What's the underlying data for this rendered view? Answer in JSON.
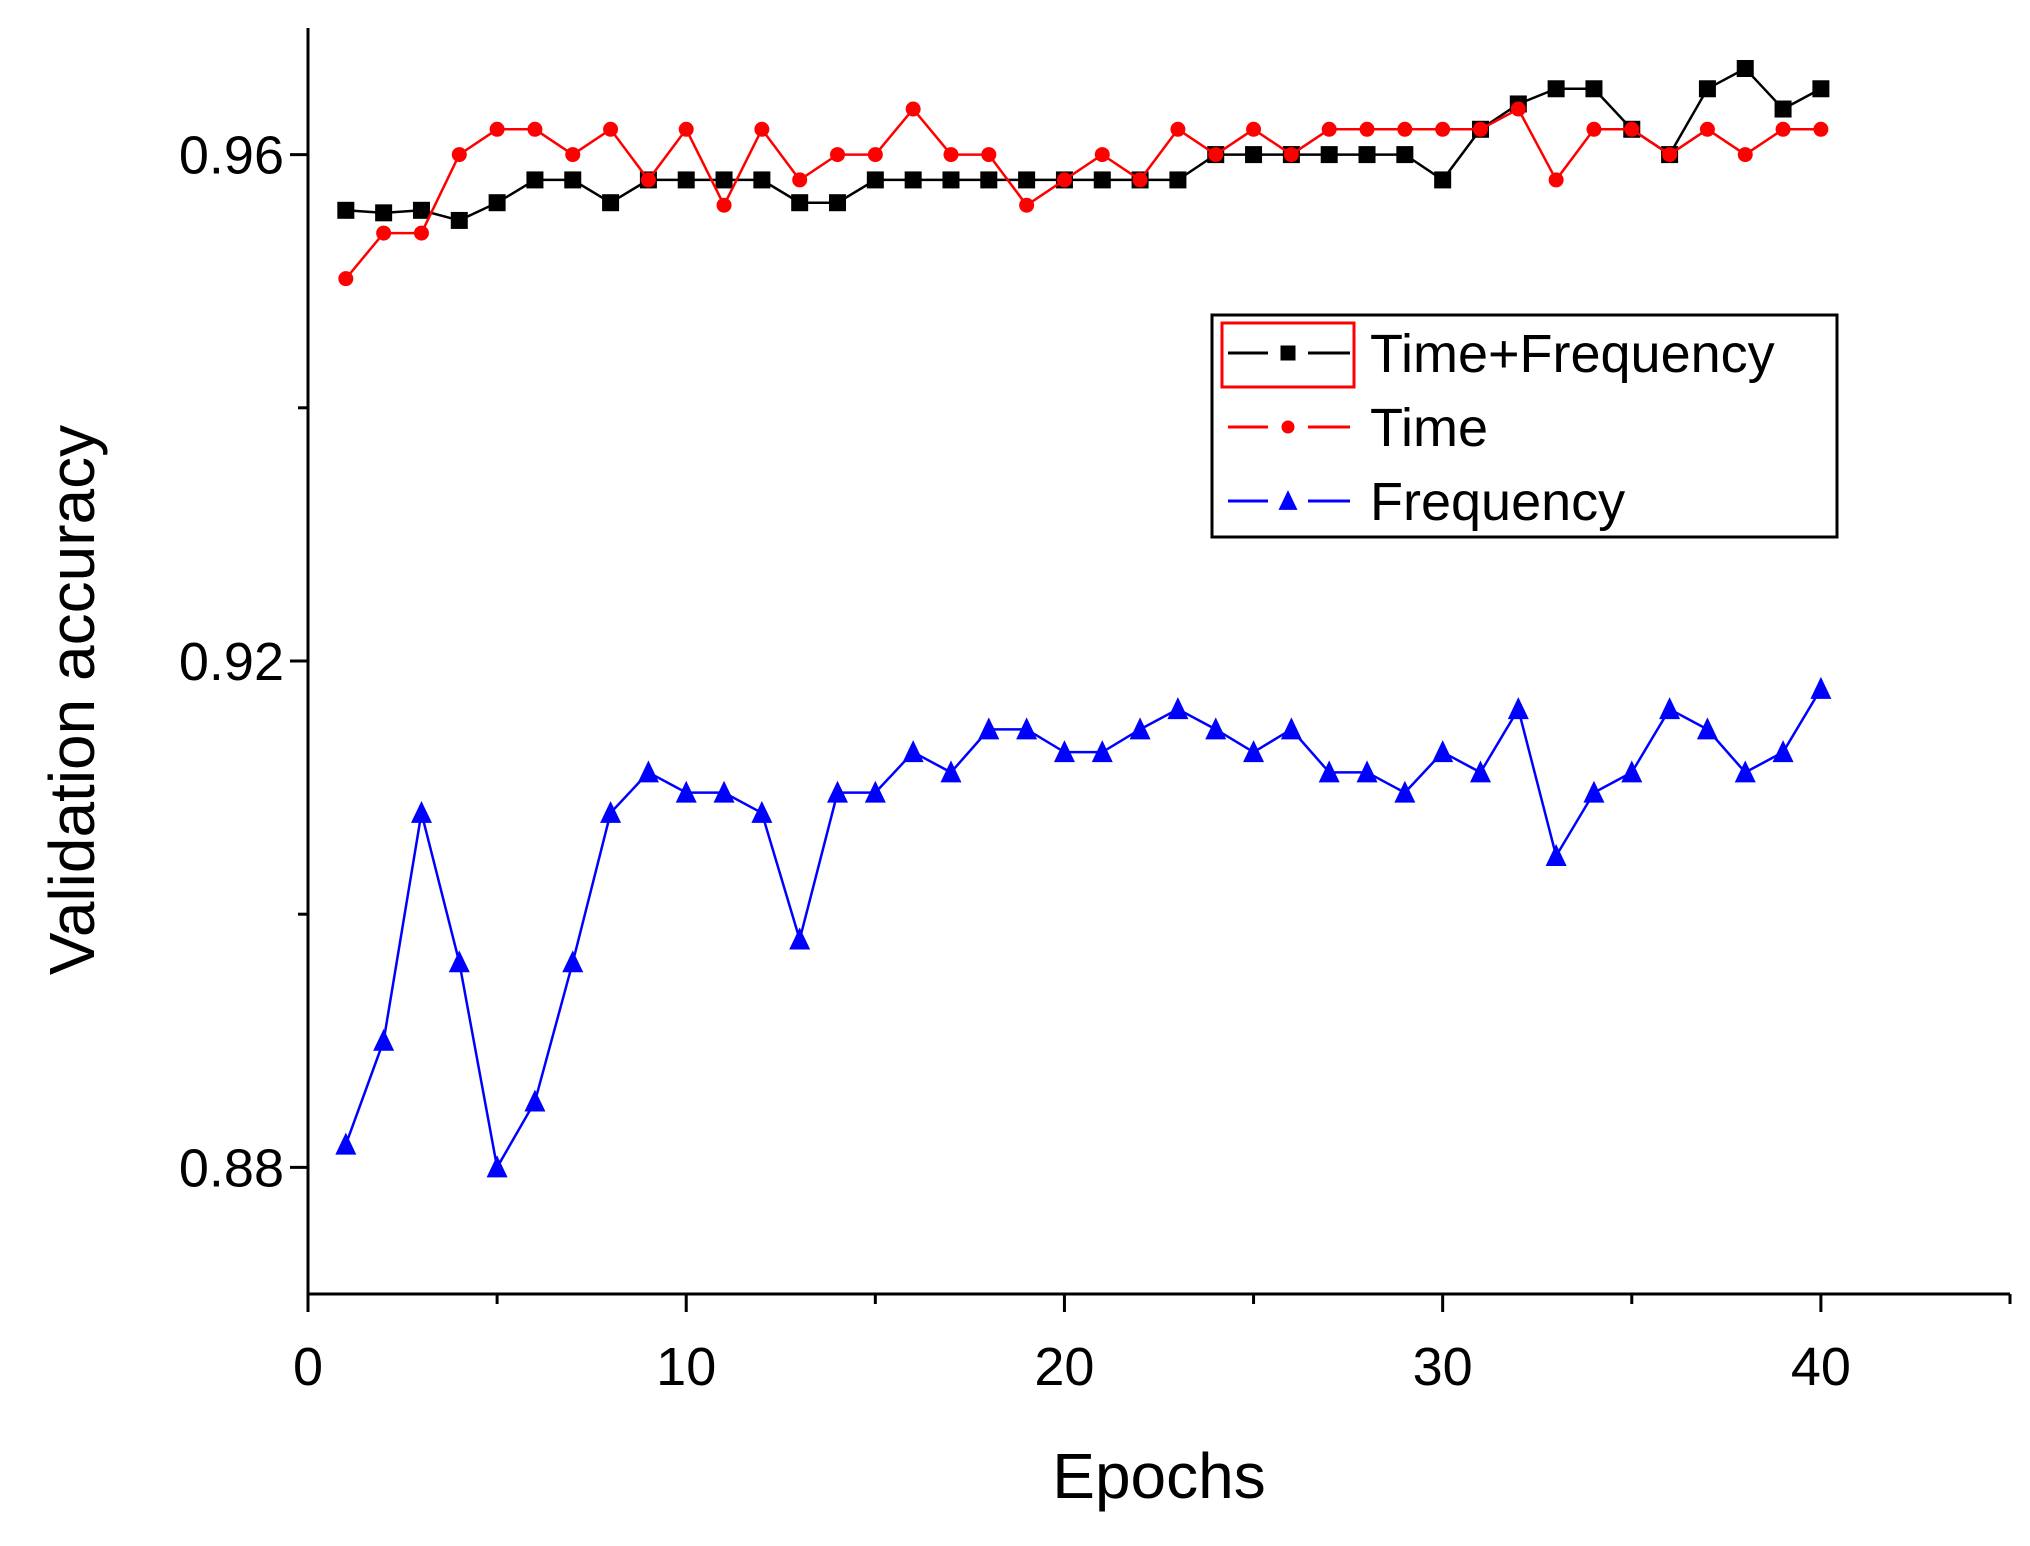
{
  "chart_data": {
    "type": "line",
    "xlabel": "Epochs",
    "ylabel": "Validation accuracy",
    "xlim": [
      0,
      45
    ],
    "ylim": [
      0.87,
      0.97
    ],
    "xticks": [
      0,
      10,
      20,
      30,
      40
    ],
    "xtick_labels": [
      "0",
      "10",
      "20",
      "30",
      "40"
    ],
    "yticks": [
      0.88,
      0.92,
      0.96
    ],
    "ytick_labels": [
      "0.88",
      "0.92",
      "0.96"
    ],
    "grid": false,
    "legend_position": "upper-right",
    "x": [
      1,
      2,
      3,
      4,
      5,
      6,
      7,
      8,
      9,
      10,
      11,
      12,
      13,
      14,
      15,
      16,
      17,
      18,
      19,
      20,
      21,
      22,
      23,
      24,
      25,
      26,
      27,
      28,
      29,
      30,
      31,
      32,
      33,
      34,
      35,
      36,
      37,
      38,
      39,
      40
    ],
    "series": [
      {
        "name": "Time+Frequency",
        "color": "#000000",
        "marker": "square",
        "values": [
          0.9556,
          0.9554,
          0.9556,
          0.9548,
          0.9562,
          0.958,
          0.958,
          0.9562,
          0.958,
          0.958,
          0.958,
          0.958,
          0.9562,
          0.9562,
          0.958,
          0.958,
          0.958,
          0.958,
          0.958,
          0.958,
          0.958,
          0.958,
          0.958,
          0.96,
          0.96,
          0.96,
          0.96,
          0.96,
          0.96,
          0.958,
          0.962,
          0.964,
          0.9652,
          0.9652,
          0.962,
          0.96,
          0.9652,
          0.9668,
          0.9636,
          0.9652
        ]
      },
      {
        "name": "Time",
        "color": "#ff0000",
        "marker": "circle",
        "values": [
          0.9502,
          0.9538,
          0.9538,
          0.96,
          0.962,
          0.962,
          0.96,
          0.962,
          0.958,
          0.962,
          0.956,
          0.962,
          0.958,
          0.96,
          0.96,
          0.9636,
          0.96,
          0.96,
          0.956,
          0.958,
          0.96,
          0.958,
          0.962,
          0.96,
          0.962,
          0.96,
          0.962,
          0.962,
          0.962,
          0.962,
          0.962,
          0.9636,
          0.958,
          0.962,
          0.962,
          0.96,
          0.962,
          0.96,
          0.962,
          0.962
        ]
      },
      {
        "name": "Frequency",
        "color": "#0000ff",
        "marker": "triangle",
        "values": [
          0.8818,
          0.89,
          0.908,
          0.8962,
          0.88,
          0.8852,
          0.8962,
          0.908,
          0.9112,
          0.9096,
          0.9096,
          0.908,
          0.898,
          0.9096,
          0.9096,
          0.9128,
          0.9112,
          0.9146,
          0.9146,
          0.9128,
          0.9128,
          0.9146,
          0.9162,
          0.9146,
          0.9128,
          0.9146,
          0.9112,
          0.9112,
          0.9096,
          0.9128,
          0.9112,
          0.9162,
          0.9046,
          0.9096,
          0.9112,
          0.9162,
          0.9146,
          0.9112,
          0.9128,
          0.9178
        ]
      }
    ]
  }
}
